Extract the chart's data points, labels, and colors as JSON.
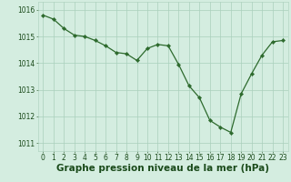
{
  "x": [
    0,
    1,
    2,
    3,
    4,
    5,
    6,
    7,
    8,
    9,
    10,
    11,
    12,
    13,
    14,
    15,
    16,
    17,
    18,
    19,
    20,
    21,
    22,
    23
  ],
  "y": [
    1015.8,
    1015.65,
    1015.3,
    1015.05,
    1015.0,
    1014.85,
    1014.65,
    1014.4,
    1014.35,
    1014.1,
    1014.55,
    1014.7,
    1014.65,
    1013.95,
    1013.15,
    1012.7,
    1011.85,
    1011.6,
    1011.4,
    1012.85,
    1013.6,
    1014.3,
    1014.8,
    1014.85
  ],
  "line_color": "#2d6a2d",
  "marker": "D",
  "marker_size": 2.2,
  "bg_color": "#d4ede0",
  "grid_color": "#aacfbc",
  "xlabel": "Graphe pression niveau de la mer (hPa)",
  "xlabel_color": "#1a4a1a",
  "xlabel_fontsize": 7.5,
  "yticks": [
    1011,
    1012,
    1013,
    1014,
    1015,
    1016
  ],
  "xticks": [
    0,
    1,
    2,
    3,
    4,
    5,
    6,
    7,
    8,
    9,
    10,
    11,
    12,
    13,
    14,
    15,
    16,
    17,
    18,
    19,
    20,
    21,
    22,
    23
  ],
  "ylim": [
    1010.7,
    1016.3
  ],
  "xlim": [
    -0.5,
    23.5
  ],
  "tick_fontsize": 5.5,
  "tick_color": "#1a4a1a"
}
